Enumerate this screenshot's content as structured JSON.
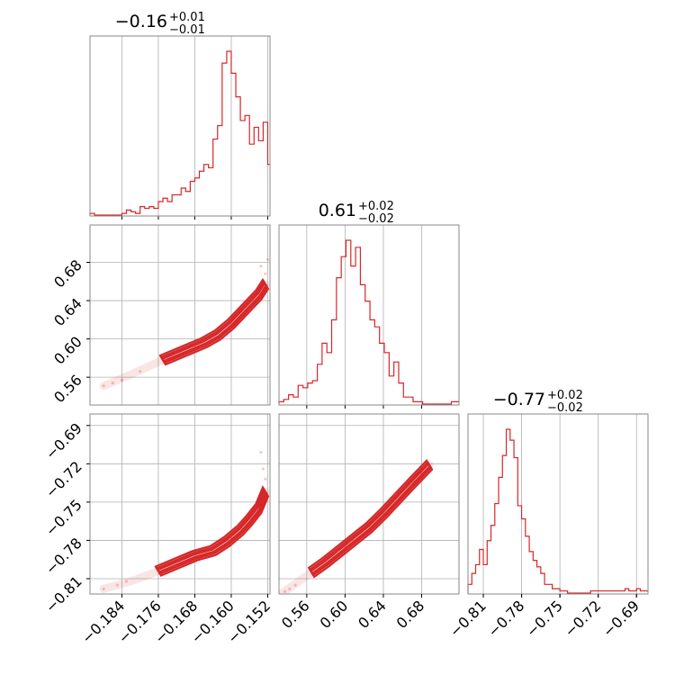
{
  "chart_data": {
    "type": "corner",
    "color": "#d62728",
    "grid": true,
    "parameters": [
      {
        "id": "p0",
        "title_median": "−0.16",
        "title_plus": "+0.01",
        "title_minus": "−0.01",
        "range": [
          -0.191,
          -0.1515
        ],
        "ticks": [
          -0.184,
          -0.176,
          -0.168,
          -0.16,
          -0.152
        ],
        "tick_labels": [
          "−0.184",
          "−0.176",
          "−0.168",
          "−0.160",
          "−0.152"
        ],
        "histogram": {
          "bin_edges_start": -0.191,
          "bin_width": 0.001,
          "counts": [
            1,
            0,
            0,
            0,
            0,
            0,
            0,
            1,
            3,
            2,
            1,
            5,
            4,
            5,
            4,
            8,
            10,
            8,
            12,
            12,
            16,
            14,
            20,
            22,
            26,
            30,
            28,
            45,
            53,
            90,
            97,
            84,
            70,
            56,
            59,
            42,
            52,
            44,
            55,
            30
          ]
        }
      },
      {
        "id": "p1",
        "title_median": "0.61",
        "title_plus": "+0.02",
        "title_minus": "−0.02",
        "range": [
          0.531,
          0.719
        ],
        "ticks": [
          0.56,
          0.6,
          0.64,
          0.68
        ],
        "tick_labels": [
          "0.56",
          "0.60",
          "0.64",
          "0.68"
        ],
        "histogram": {
          "bin_edges_start": 0.531,
          "bin_width": 0.005,
          "counts": [
            1,
            2,
            4,
            3,
            8,
            7,
            9,
            10,
            17,
            26,
            22,
            36,
            54,
            63,
            70,
            59,
            67,
            51,
            44,
            36,
            33,
            26,
            22,
            12,
            18,
            9,
            3,
            3,
            1,
            1,
            0,
            0,
            0,
            0,
            0,
            0,
            1,
            1
          ]
        }
      },
      {
        "id": "p2",
        "title_median": "−0.77",
        "title_plus": "+0.02",
        "title_minus": "−0.02",
        "range": [
          -0.822,
          -0.681
        ],
        "ticks": [
          -0.81,
          -0.78,
          -0.75,
          -0.72,
          -0.69
        ],
        "tick_labels": [
          "−0.81",
          "−0.78",
          "−0.75",
          "−0.72",
          "−0.69"
        ],
        "histogram": {
          "bin_edges_start": -0.822,
          "bin_width": 0.003,
          "counts": [
            4,
            9,
            13,
            20,
            13,
            24,
            31,
            41,
            53,
            63,
            75,
            70,
            62,
            40,
            34,
            26,
            19,
            15,
            12,
            9,
            4,
            4,
            2,
            2,
            1,
            1,
            0,
            0,
            0,
            0,
            0,
            0,
            1,
            1,
            1,
            1,
            1,
            1,
            1,
            1,
            1,
            2,
            1,
            1,
            2,
            1,
            1
          ]
        }
      }
    ],
    "pairs": [
      {
        "x_param": "p0",
        "y_param": "p1",
        "ridge_x": [
          -0.188,
          -0.182,
          -0.175,
          -0.17,
          -0.166,
          -0.163,
          -0.16,
          -0.158,
          -0.156,
          -0.154,
          -0.1525
        ],
        "ridge_y": [
          0.551,
          0.563,
          0.578,
          0.588,
          0.596,
          0.604,
          0.616,
          0.626,
          0.636,
          0.646,
          0.657
        ],
        "points": [
          [
            -0.188,
            0.551
          ],
          [
            -0.186,
            0.554
          ],
          [
            -0.184,
            0.557
          ],
          [
            -0.18,
            0.566
          ],
          [
            -0.152,
            0.683
          ],
          [
            -0.1535,
            0.676
          ],
          [
            -0.1525,
            0.668
          ]
        ]
      },
      {
        "x_param": "p0",
        "y_param": "p2",
        "ridge_x": [
          -0.188,
          -0.182,
          -0.176,
          -0.172,
          -0.168,
          -0.164,
          -0.161,
          -0.158,
          -0.156,
          -0.154,
          -0.1525
        ],
        "ridge_y": [
          -0.818,
          -0.812,
          -0.804,
          -0.798,
          -0.792,
          -0.788,
          -0.781,
          -0.772,
          -0.764,
          -0.755,
          -0.742
        ],
        "points": [
          [
            -0.188,
            -0.818
          ],
          [
            -0.185,
            -0.815
          ],
          [
            -0.183,
            -0.812
          ],
          [
            -0.1535,
            -0.711
          ],
          [
            -0.153,
            -0.724
          ],
          [
            -0.1525,
            -0.732
          ]
        ]
      },
      {
        "x_param": "p1",
        "y_param": "p2",
        "ridge_x": [
          0.535,
          0.55,
          0.565,
          0.58,
          0.595,
          0.61,
          0.625,
          0.64,
          0.655,
          0.67,
          0.688
        ],
        "ridge_y": [
          -0.821,
          -0.813,
          -0.805,
          -0.797,
          -0.788,
          -0.779,
          -0.77,
          -0.759,
          -0.747,
          -0.735,
          -0.721
        ],
        "points": [
          [
            0.537,
            -0.82
          ],
          [
            0.542,
            -0.818
          ],
          [
            0.548,
            -0.815
          ],
          [
            0.672,
            -0.734
          ],
          [
            0.68,
            -0.728
          ],
          [
            0.688,
            -0.721
          ]
        ]
      }
    ]
  }
}
